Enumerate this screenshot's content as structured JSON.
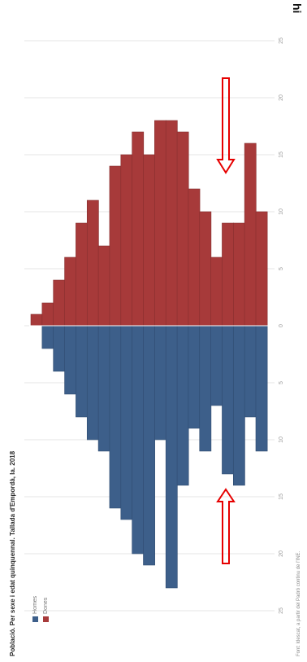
{
  "chart_data": {
    "type": "bar",
    "title": "Població. Per sexe i edat quinquennal. Tallada d'Empordà, la. 2018",
    "source": "Font: Idescat, a partir del Padró continu de l'INE.",
    "corner_label": "hi",
    "series": [
      {
        "name": "Homes",
        "color": "#3d5f8a",
        "values": [
          0,
          2,
          4,
          6,
          8,
          10,
          11,
          16,
          17,
          20,
          21,
          10,
          23,
          14,
          9,
          11,
          7,
          13,
          14,
          8,
          11
        ]
      },
      {
        "name": "Dones",
        "color": "#a73a3a",
        "values": [
          1,
          2,
          4,
          6,
          9,
          11,
          7,
          14,
          15,
          17,
          15,
          18,
          18,
          17,
          12,
          10,
          6,
          9,
          9,
          16,
          10
        ]
      }
    ],
    "tick_values": [
      25,
      20,
      15,
      10,
      5,
      0,
      5,
      10,
      15,
      20,
      25
    ],
    "value_range": [
      -25,
      25
    ],
    "grid": true,
    "legend_position": "bottom-left",
    "arrows": [
      "upper",
      "lower"
    ],
    "arrow_color": "#e60000"
  }
}
